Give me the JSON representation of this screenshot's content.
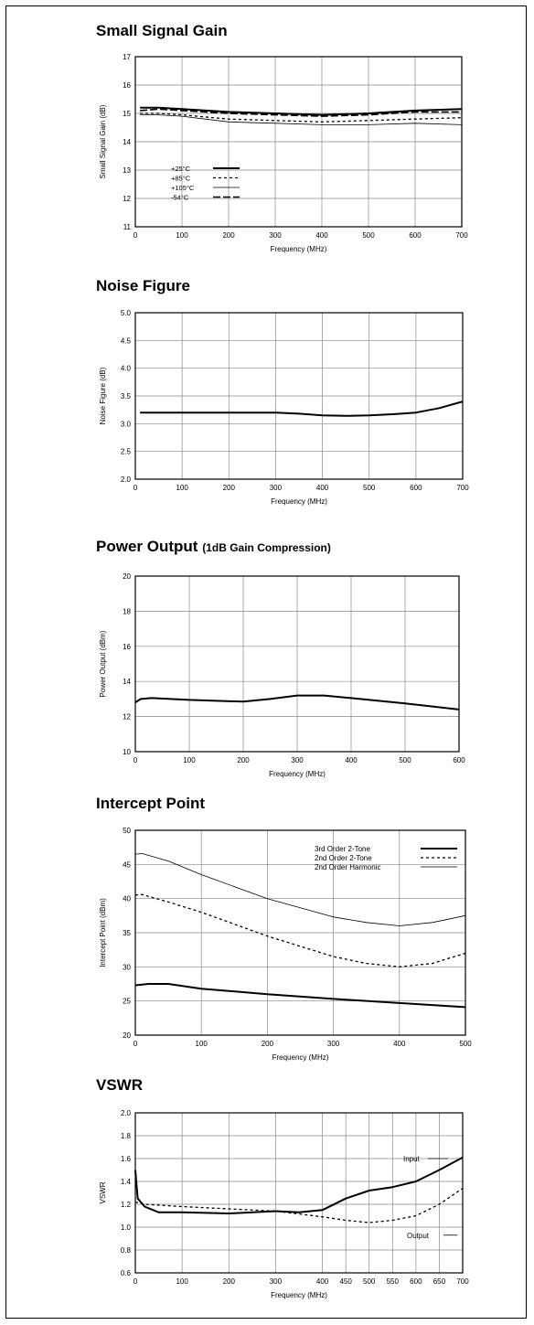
{
  "charts": [
    {
      "title": "Small Signal Gain",
      "subtitle": ""
    },
    {
      "title": "Noise Figure",
      "subtitle": ""
    },
    {
      "title": "Power Output",
      "subtitle": "(1dB Gain Compression)"
    },
    {
      "title": "Intercept Point",
      "subtitle": ""
    },
    {
      "title": "VSWR",
      "subtitle": ""
    }
  ],
  "chart_data": [
    {
      "type": "line",
      "title": "Small Signal Gain",
      "xlabel": "Frequency (MHz)",
      "ylabel": "Small Signal Gain (dB)",
      "xlim": [
        0,
        700
      ],
      "ylim": [
        11,
        17
      ],
      "xticks": [
        "0",
        "100",
        "200",
        "300",
        "400",
        "500",
        "600",
        "700"
      ],
      "yticks": [
        "11",
        "12",
        "13",
        "14",
        "15",
        "16",
        "17"
      ],
      "grid": true,
      "legend": "lower-left",
      "series": [
        {
          "name": "+25°C",
          "style": "solid-thick",
          "x": [
            10,
            50,
            100,
            200,
            300,
            400,
            500,
            600,
            700
          ],
          "y": [
            15.2,
            15.2,
            15.15,
            15.05,
            15.0,
            14.95,
            15.0,
            15.1,
            15.15
          ]
        },
        {
          "name": "+85°C",
          "style": "dotted",
          "x": [
            10,
            50,
            100,
            200,
            300,
            400,
            500,
            600,
            700
          ],
          "y": [
            15.0,
            15.0,
            14.95,
            14.8,
            14.75,
            14.7,
            14.75,
            14.8,
            14.85
          ]
        },
        {
          "name": "+105°C",
          "style": "thin",
          "x": [
            10,
            50,
            100,
            200,
            300,
            400,
            500,
            600,
            700
          ],
          "y": [
            14.95,
            14.95,
            14.9,
            14.7,
            14.65,
            14.6,
            14.6,
            14.65,
            14.6
          ]
        },
        {
          "name": "-54°C",
          "style": "dashed",
          "x": [
            10,
            50,
            100,
            200,
            300,
            400,
            500,
            600,
            700
          ],
          "y": [
            15.1,
            15.15,
            15.1,
            15.0,
            14.95,
            14.9,
            14.95,
            15.05,
            15.05
          ]
        }
      ]
    },
    {
      "type": "line",
      "title": "Noise Figure",
      "xlabel": "Frequency (MHz)",
      "ylabel": "Noise Figure (dB)",
      "xlim": [
        0,
        700
      ],
      "ylim": [
        2.0,
        5.0
      ],
      "xticks": [
        "0",
        "100",
        "200",
        "300",
        "400",
        "500",
        "600",
        "700"
      ],
      "yticks": [
        "2.0",
        "2.5",
        "3.0",
        "3.5",
        "4.0",
        "4.5",
        "5.0"
      ],
      "grid": true,
      "series": [
        {
          "name": "",
          "style": "solid-thick",
          "x": [
            10,
            100,
            200,
            300,
            350,
            400,
            450,
            500,
            550,
            600,
            650,
            700
          ],
          "y": [
            3.2,
            3.2,
            3.2,
            3.2,
            3.18,
            3.15,
            3.14,
            3.15,
            3.17,
            3.2,
            3.28,
            3.4
          ]
        }
      ]
    },
    {
      "type": "line",
      "title": "Power Output",
      "subtitle": "(1dB Gain Compression)",
      "xlabel": "Frequency (MHz)",
      "ylabel": "Power Output (dBm)",
      "xlim": [
        0,
        600
      ],
      "ylim": [
        10,
        20
      ],
      "xticks": [
        "0",
        "100",
        "200",
        "300",
        "400",
        "500",
        "600"
      ],
      "yticks": [
        "10",
        "12",
        "14",
        "16",
        "18",
        "20"
      ],
      "grid": true,
      "series": [
        {
          "name": "",
          "style": "solid-thick",
          "x": [
            0,
            10,
            30,
            100,
            200,
            250,
            300,
            350,
            400,
            500,
            600
          ],
          "y": [
            12.8,
            13.0,
            13.05,
            12.95,
            12.85,
            13.0,
            13.2,
            13.2,
            13.05,
            12.75,
            12.4
          ]
        }
      ]
    },
    {
      "type": "line",
      "title": "Intercept Point",
      "xlabel": "Frequency (MHz)",
      "ylabel": "Intercept Point (dBm)",
      "xlim": [
        0,
        500
      ],
      "ylim": [
        20,
        50
      ],
      "xticks": [
        "0",
        "100",
        "200",
        "300",
        "400",
        "500"
      ],
      "yticks": [
        "20",
        "25",
        "30",
        "35",
        "40",
        "45",
        "50"
      ],
      "grid": true,
      "legend": "top-right",
      "series": [
        {
          "name": "3rd Order 2-Tone",
          "style": "solid-thick",
          "x": [
            0,
            20,
            50,
            100,
            200,
            300,
            400,
            500
          ],
          "y": [
            27.3,
            27.5,
            27.5,
            26.8,
            26.0,
            25.3,
            24.7,
            24.1
          ]
        },
        {
          "name": "2nd Order 2-Tone",
          "style": "dotted",
          "x": [
            0,
            10,
            50,
            100,
            200,
            300,
            350,
            400,
            450,
            500
          ],
          "y": [
            40.5,
            40.6,
            39.5,
            38.0,
            34.5,
            31.5,
            30.5,
            30.0,
            30.5,
            32.0
          ]
        },
        {
          "name": "2nd Order Harmonic",
          "style": "thin",
          "x": [
            0,
            10,
            50,
            100,
            200,
            300,
            350,
            400,
            450,
            500
          ],
          "y": [
            46.5,
            46.6,
            45.5,
            43.5,
            40.0,
            37.3,
            36.5,
            36.0,
            36.5,
            37.5
          ]
        }
      ]
    },
    {
      "type": "line",
      "title": "VSWR",
      "xlabel": "Frequency (MHz)",
      "ylabel": "VSWR",
      "xlim": [
        0,
        700
      ],
      "ylim": [
        0.6,
        2.0
      ],
      "xticks": [
        "0",
        "100",
        "200",
        "300",
        "400",
        "450",
        "500",
        "550",
        "600",
        "650",
        "700"
      ],
      "yticks": [
        "0.6",
        "0.8",
        "1.0",
        "1.2",
        "1.4",
        "1.6",
        "1.8",
        "2.0"
      ],
      "grid": true,
      "series": [
        {
          "name": "Input",
          "style": "solid-thick",
          "x": [
            0,
            5,
            20,
            50,
            100,
            200,
            300,
            350,
            400,
            450,
            500,
            550,
            600,
            650,
            700
          ],
          "y": [
            1.5,
            1.25,
            1.18,
            1.13,
            1.13,
            1.12,
            1.14,
            1.13,
            1.15,
            1.25,
            1.32,
            1.35,
            1.4,
            1.5,
            1.61
          ]
        },
        {
          "name": "Output",
          "style": "dotted",
          "x": [
            0,
            20,
            100,
            200,
            300,
            400,
            450,
            500,
            550,
            600,
            650,
            700
          ],
          "y": [
            1.22,
            1.2,
            1.18,
            1.16,
            1.14,
            1.09,
            1.06,
            1.04,
            1.06,
            1.1,
            1.2,
            1.34
          ]
        }
      ],
      "annotations": [
        "Input",
        "Output"
      ]
    }
  ]
}
